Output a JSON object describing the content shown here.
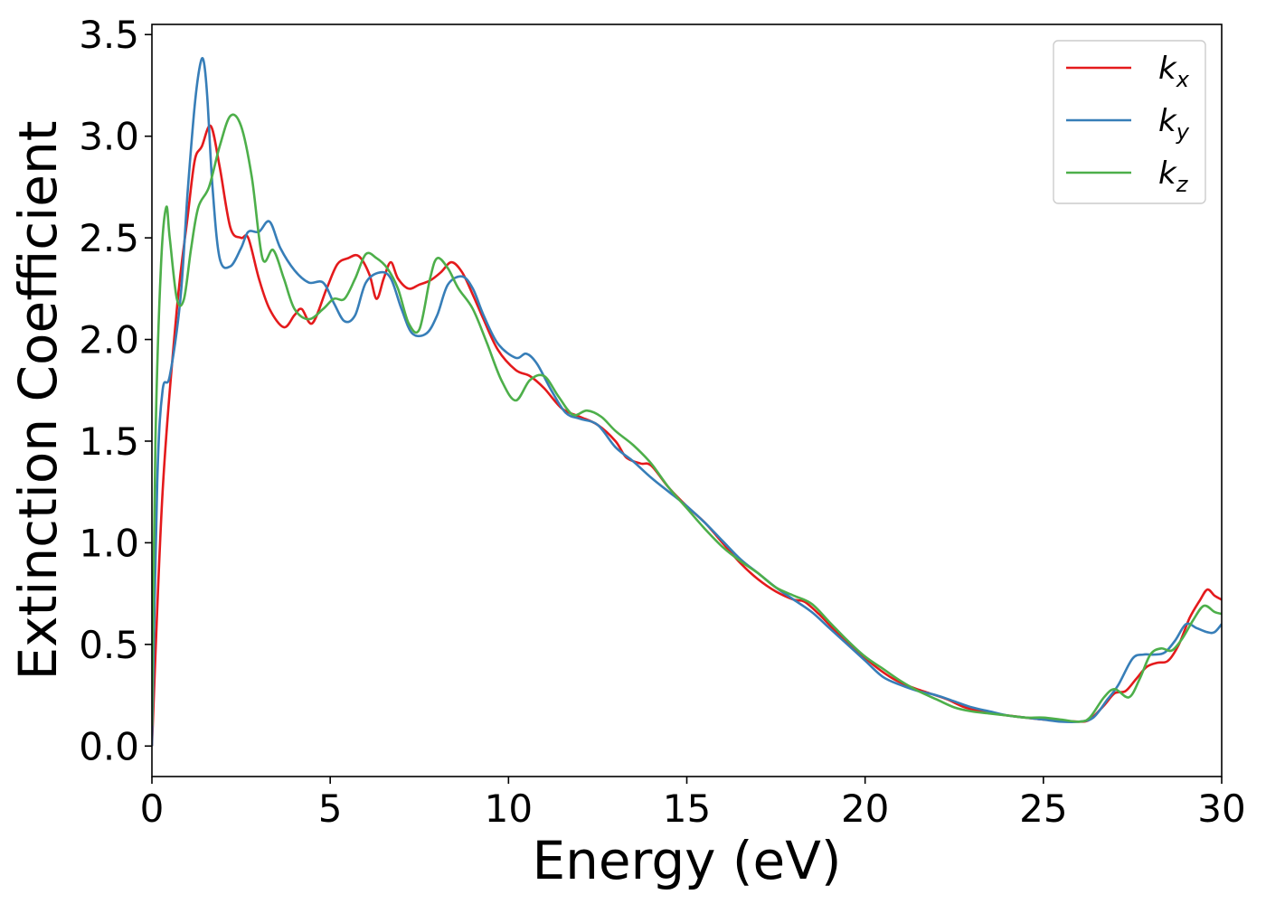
{
  "chart_data": {
    "type": "line",
    "xlabel": "Energy (eV)",
    "ylabel": "Extinction Coefficient",
    "xlim": [
      0,
      30
    ],
    "ylim": [
      -0.15,
      3.55
    ],
    "xticks": [
      0,
      5,
      10,
      15,
      20,
      25,
      30
    ],
    "yticks": [
      0.0,
      0.5,
      1.0,
      1.5,
      2.0,
      2.5,
      3.0,
      3.5
    ],
    "grid": false,
    "legend_position": "top-right",
    "series": [
      {
        "name": "k_x",
        "label_base": "k",
        "label_sub": "x",
        "color": "#e41a1c",
        "points": [
          [
            0,
            0.0
          ],
          [
            0.3,
            1.25
          ],
          [
            0.7,
            2.15
          ],
          [
            1.0,
            2.6
          ],
          [
            1.2,
            2.88
          ],
          [
            1.4,
            2.95
          ],
          [
            1.65,
            3.05
          ],
          [
            1.9,
            2.85
          ],
          [
            2.2,
            2.55
          ],
          [
            2.5,
            2.5
          ],
          [
            2.7,
            2.5
          ],
          [
            3.0,
            2.3
          ],
          [
            3.3,
            2.15
          ],
          [
            3.7,
            2.06
          ],
          [
            4.0,
            2.12
          ],
          [
            4.2,
            2.15
          ],
          [
            4.5,
            2.08
          ],
          [
            4.9,
            2.25
          ],
          [
            5.2,
            2.37
          ],
          [
            5.5,
            2.4
          ],
          [
            5.8,
            2.41
          ],
          [
            6.1,
            2.32
          ],
          [
            6.3,
            2.2
          ],
          [
            6.5,
            2.3
          ],
          [
            6.7,
            2.38
          ],
          [
            6.9,
            2.3
          ],
          [
            7.2,
            2.25
          ],
          [
            7.5,
            2.27
          ],
          [
            7.8,
            2.29
          ],
          [
            8.1,
            2.33
          ],
          [
            8.4,
            2.38
          ],
          [
            8.7,
            2.33
          ],
          [
            9.0,
            2.22
          ],
          [
            9.3,
            2.1
          ],
          [
            9.7,
            1.95
          ],
          [
            10.2,
            1.85
          ],
          [
            10.6,
            1.82
          ],
          [
            11.0,
            1.76
          ],
          [
            11.5,
            1.66
          ],
          [
            12.0,
            1.62
          ],
          [
            12.5,
            1.58
          ],
          [
            13.0,
            1.5
          ],
          [
            13.3,
            1.42
          ],
          [
            13.7,
            1.39
          ],
          [
            14.0,
            1.38
          ],
          [
            14.5,
            1.27
          ],
          [
            15.0,
            1.18
          ],
          [
            15.5,
            1.1
          ],
          [
            16.0,
            1.0
          ],
          [
            16.5,
            0.9
          ],
          [
            17.0,
            0.82
          ],
          [
            17.5,
            0.76
          ],
          [
            18.0,
            0.72
          ],
          [
            18.3,
            0.71
          ],
          [
            18.7,
            0.65
          ],
          [
            19.2,
            0.56
          ],
          [
            19.7,
            0.48
          ],
          [
            20.3,
            0.39
          ],
          [
            20.8,
            0.33
          ],
          [
            21.3,
            0.29
          ],
          [
            21.8,
            0.26
          ],
          [
            22.3,
            0.23
          ],
          [
            22.8,
            0.19
          ],
          [
            23.3,
            0.17
          ],
          [
            23.8,
            0.155
          ],
          [
            24.5,
            0.14
          ],
          [
            25.0,
            0.13
          ],
          [
            25.5,
            0.125
          ],
          [
            26.0,
            0.12
          ],
          [
            26.3,
            0.13
          ],
          [
            26.7,
            0.2
          ],
          [
            27.0,
            0.26
          ],
          [
            27.3,
            0.27
          ],
          [
            27.6,
            0.33
          ],
          [
            27.9,
            0.39
          ],
          [
            28.2,
            0.41
          ],
          [
            28.5,
            0.42
          ],
          [
            28.8,
            0.5
          ],
          [
            29.1,
            0.63
          ],
          [
            29.4,
            0.72
          ],
          [
            29.6,
            0.77
          ],
          [
            29.8,
            0.74
          ],
          [
            30.0,
            0.72
          ]
        ]
      },
      {
        "name": "k_y",
        "label_base": "k",
        "label_sub": "y",
        "color": "#377eb8",
        "points": [
          [
            0,
            0.0
          ],
          [
            0.15,
            1.3
          ],
          [
            0.3,
            1.75
          ],
          [
            0.5,
            1.82
          ],
          [
            0.8,
            2.2
          ],
          [
            1.0,
            2.72
          ],
          [
            1.2,
            3.15
          ],
          [
            1.35,
            3.35
          ],
          [
            1.45,
            3.37
          ],
          [
            1.55,
            3.2
          ],
          [
            1.7,
            2.75
          ],
          [
            1.9,
            2.4
          ],
          [
            2.2,
            2.36
          ],
          [
            2.5,
            2.45
          ],
          [
            2.7,
            2.53
          ],
          [
            3.0,
            2.53
          ],
          [
            3.3,
            2.58
          ],
          [
            3.6,
            2.45
          ],
          [
            4.0,
            2.34
          ],
          [
            4.4,
            2.28
          ],
          [
            4.8,
            2.28
          ],
          [
            5.1,
            2.18
          ],
          [
            5.4,
            2.09
          ],
          [
            5.7,
            2.12
          ],
          [
            6.0,
            2.28
          ],
          [
            6.4,
            2.33
          ],
          [
            6.7,
            2.3
          ],
          [
            7.0,
            2.15
          ],
          [
            7.3,
            2.03
          ],
          [
            7.7,
            2.03
          ],
          [
            8.0,
            2.12
          ],
          [
            8.3,
            2.27
          ],
          [
            8.7,
            2.31
          ],
          [
            9.0,
            2.25
          ],
          [
            9.3,
            2.12
          ],
          [
            9.7,
            1.98
          ],
          [
            10.2,
            1.91
          ],
          [
            10.5,
            1.93
          ],
          [
            10.8,
            1.88
          ],
          [
            11.2,
            1.75
          ],
          [
            11.6,
            1.64
          ],
          [
            12.0,
            1.61
          ],
          [
            12.5,
            1.58
          ],
          [
            13.0,
            1.47
          ],
          [
            13.5,
            1.4
          ],
          [
            14.0,
            1.32
          ],
          [
            14.5,
            1.25
          ],
          [
            15.0,
            1.18
          ],
          [
            15.5,
            1.1
          ],
          [
            16.0,
            1.01
          ],
          [
            16.5,
            0.92
          ],
          [
            17.0,
            0.85
          ],
          [
            17.5,
            0.78
          ],
          [
            18.0,
            0.72
          ],
          [
            18.5,
            0.66
          ],
          [
            19.0,
            0.58
          ],
          [
            19.5,
            0.5
          ],
          [
            20.0,
            0.42
          ],
          [
            20.5,
            0.34
          ],
          [
            21.0,
            0.3
          ],
          [
            21.5,
            0.27
          ],
          [
            22.0,
            0.25
          ],
          [
            22.5,
            0.22
          ],
          [
            23.0,
            0.19
          ],
          [
            23.5,
            0.17
          ],
          [
            24.0,
            0.15
          ],
          [
            24.5,
            0.14
          ],
          [
            25.0,
            0.13
          ],
          [
            25.5,
            0.12
          ],
          [
            26.0,
            0.12
          ],
          [
            26.4,
            0.14
          ],
          [
            26.8,
            0.23
          ],
          [
            27.1,
            0.3
          ],
          [
            27.5,
            0.43
          ],
          [
            27.8,
            0.45
          ],
          [
            28.1,
            0.45
          ],
          [
            28.4,
            0.46
          ],
          [
            28.7,
            0.52
          ],
          [
            29.0,
            0.6
          ],
          [
            29.3,
            0.58
          ],
          [
            29.6,
            0.56
          ],
          [
            29.8,
            0.56
          ],
          [
            30.0,
            0.6
          ]
        ]
      },
      {
        "name": "k_z",
        "label_base": "k",
        "label_sub": "z",
        "color": "#4daf4a",
        "points": [
          [
            0,
            0.1
          ],
          [
            0.1,
            1.5
          ],
          [
            0.25,
            2.35
          ],
          [
            0.4,
            2.65
          ],
          [
            0.5,
            2.5
          ],
          [
            0.7,
            2.2
          ],
          [
            0.9,
            2.2
          ],
          [
            1.1,
            2.45
          ],
          [
            1.3,
            2.65
          ],
          [
            1.6,
            2.75
          ],
          [
            1.9,
            2.95
          ],
          [
            2.2,
            3.1
          ],
          [
            2.5,
            3.05
          ],
          [
            2.8,
            2.8
          ],
          [
            3.1,
            2.4
          ],
          [
            3.4,
            2.44
          ],
          [
            3.7,
            2.3
          ],
          [
            4.0,
            2.15
          ],
          [
            4.4,
            2.1
          ],
          [
            4.8,
            2.15
          ],
          [
            5.1,
            2.2
          ],
          [
            5.4,
            2.2
          ],
          [
            5.7,
            2.3
          ],
          [
            6.0,
            2.42
          ],
          [
            6.3,
            2.4
          ],
          [
            6.6,
            2.35
          ],
          [
            6.9,
            2.25
          ],
          [
            7.2,
            2.08
          ],
          [
            7.5,
            2.05
          ],
          [
            7.8,
            2.3
          ],
          [
            8.0,
            2.4
          ],
          [
            8.3,
            2.35
          ],
          [
            8.6,
            2.25
          ],
          [
            9.0,
            2.15
          ],
          [
            9.4,
            1.98
          ],
          [
            9.8,
            1.8
          ],
          [
            10.2,
            1.7
          ],
          [
            10.6,
            1.8
          ],
          [
            11.0,
            1.82
          ],
          [
            11.4,
            1.72
          ],
          [
            11.8,
            1.63
          ],
          [
            12.2,
            1.65
          ],
          [
            12.6,
            1.62
          ],
          [
            13.0,
            1.55
          ],
          [
            13.5,
            1.48
          ],
          [
            14.0,
            1.39
          ],
          [
            14.5,
            1.27
          ],
          [
            15.0,
            1.17
          ],
          [
            15.5,
            1.07
          ],
          [
            16.0,
            0.98
          ],
          [
            16.5,
            0.91
          ],
          [
            17.0,
            0.85
          ],
          [
            17.5,
            0.78
          ],
          [
            18.0,
            0.74
          ],
          [
            18.5,
            0.7
          ],
          [
            19.0,
            0.61
          ],
          [
            19.5,
            0.52
          ],
          [
            20.0,
            0.44
          ],
          [
            20.5,
            0.38
          ],
          [
            21.0,
            0.32
          ],
          [
            21.5,
            0.27
          ],
          [
            22.0,
            0.23
          ],
          [
            22.5,
            0.19
          ],
          [
            23.0,
            0.17
          ],
          [
            23.5,
            0.16
          ],
          [
            24.0,
            0.15
          ],
          [
            24.5,
            0.14
          ],
          [
            25.0,
            0.14
          ],
          [
            25.5,
            0.13
          ],
          [
            26.0,
            0.12
          ],
          [
            26.3,
            0.14
          ],
          [
            26.7,
            0.24
          ],
          [
            27.0,
            0.28
          ],
          [
            27.4,
            0.24
          ],
          [
            27.7,
            0.33
          ],
          [
            28.0,
            0.45
          ],
          [
            28.3,
            0.48
          ],
          [
            28.6,
            0.47
          ],
          [
            28.9,
            0.53
          ],
          [
            29.2,
            0.62
          ],
          [
            29.5,
            0.69
          ],
          [
            29.8,
            0.66
          ],
          [
            30.0,
            0.65
          ]
        ]
      }
    ]
  }
}
